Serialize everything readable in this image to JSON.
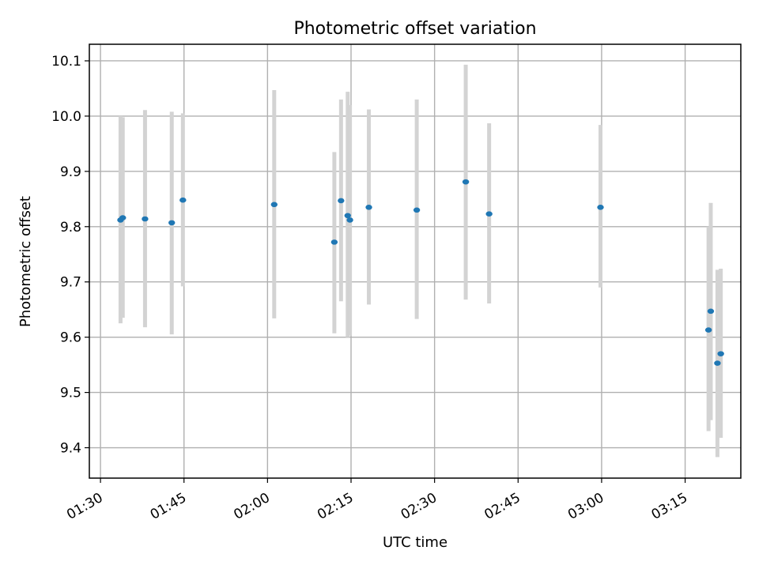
{
  "chart_data": {
    "type": "scatter",
    "title": "Photometric offset variation",
    "xlabel": "UTC time",
    "ylabel": "Photometric offset",
    "grid": true,
    "x_axis": {
      "kind": "time",
      "range": [
        "01:28",
        "03:25"
      ],
      "ticks": [
        "01:30",
        "01:45",
        "02:00",
        "02:15",
        "02:30",
        "02:45",
        "03:00",
        "03:15"
      ]
    },
    "y_axis": {
      "range": [
        9.345,
        10.13
      ],
      "ticks": [
        9.4,
        9.5,
        9.6,
        9.7,
        9.8,
        9.9,
        10.0,
        10.1
      ],
      "tick_labels": [
        "9.4",
        "9.5",
        "9.6",
        "9.7",
        "9.8",
        "9.9",
        "10.0",
        "10.1"
      ]
    },
    "colors": {
      "points": "#1f77b4",
      "error_bars": "#d3d3d3",
      "grid": "#b0b0b0"
    },
    "points": [
      {
        "time": "01:33:36",
        "y": 9.812,
        "err_low": 9.625,
        "err_high": 10.0
      },
      {
        "time": "01:34:00",
        "y": 9.816,
        "err_low": 9.635,
        "err_high": 9.998
      },
      {
        "time": "01:38:00",
        "y": 9.814,
        "err_low": 9.618,
        "err_high": 10.011
      },
      {
        "time": "01:42:48",
        "y": 9.807,
        "err_low": 9.605,
        "err_high": 10.008
      },
      {
        "time": "01:44:48",
        "y": 9.848,
        "err_low": 9.692,
        "err_high": 10.005
      },
      {
        "time": "02:01:12",
        "y": 9.84,
        "err_low": 9.634,
        "err_high": 10.047
      },
      {
        "time": "02:12:00",
        "y": 9.772,
        "err_low": 9.607,
        "err_high": 9.935
      },
      {
        "time": "02:13:12",
        "y": 9.847,
        "err_low": 9.665,
        "err_high": 10.03
      },
      {
        "time": "02:14:24",
        "y": 9.82,
        "err_low": 9.6,
        "err_high": 10.044
      },
      {
        "time": "02:14:48",
        "y": 9.812,
        "err_low": 9.603,
        "err_high": 10.02
      },
      {
        "time": "02:18:12",
        "y": 9.835,
        "err_low": 9.659,
        "err_high": 10.012
      },
      {
        "time": "02:26:48",
        "y": 9.83,
        "err_low": 9.633,
        "err_high": 10.03
      },
      {
        "time": "02:35:36",
        "y": 9.881,
        "err_low": 9.668,
        "err_high": 10.093
      },
      {
        "time": "02:39:48",
        "y": 9.823,
        "err_low": 9.661,
        "err_high": 9.987
      },
      {
        "time": "02:59:48",
        "y": 9.835,
        "err_low": 9.69,
        "err_high": 9.984
      },
      {
        "time": "03:19:12",
        "y": 9.613,
        "err_low": 9.43,
        "err_high": 9.8
      },
      {
        "time": "03:19:36",
        "y": 9.647,
        "err_low": 9.45,
        "err_high": 9.843
      },
      {
        "time": "03:20:48",
        "y": 9.553,
        "err_low": 9.383,
        "err_high": 9.722
      },
      {
        "time": "03:21:24",
        "y": 9.57,
        "err_low": 9.418,
        "err_high": 9.724
      }
    ]
  }
}
